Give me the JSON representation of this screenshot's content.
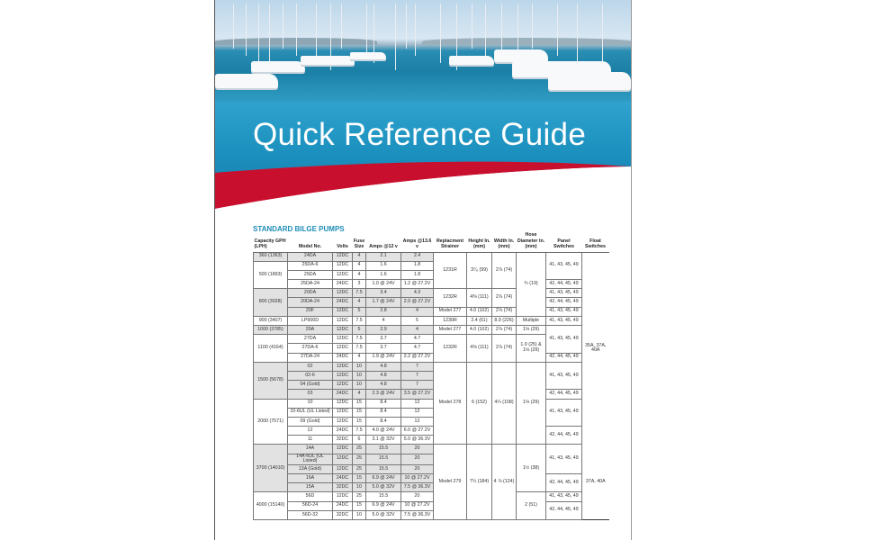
{
  "document": {
    "title": "Quick Reference Guide",
    "section": "STANDARD BILGE PUMPS",
    "colors": {
      "band": "#1b8fbd",
      "swoosh": "#c8102e",
      "section": "#1d8db5"
    }
  },
  "table": {
    "headers": [
      "Capacity GPH (LPH)",
      "Model No.",
      "Volts",
      "Fuse Size",
      "Amps @12 v",
      "Amps @13.6 v",
      "Replacment Strainer",
      "Height In. (mm)",
      "Width In. (mm)",
      "Hose Diameter In. (mm)",
      "Panel Switches",
      "Float Switches"
    ],
    "capacity": [
      {
        "text": "360 (1363)",
        "rows": 1
      },
      {
        "text": "500 (1893)",
        "rows": 3
      },
      {
        "text": "800 (3028)",
        "rows": 3
      },
      {
        "text": "900 (3407)",
        "rows": 1
      },
      {
        "text": "1000 (3785)",
        "rows": 1
      },
      {
        "text": "1100 (4164)",
        "rows": 3
      },
      {
        "text": "1500 (5678)",
        "rows": 4
      },
      {
        "text": "2000 (7571)",
        "rows": 5
      },
      {
        "text": "3700 (14010)",
        "rows": 5
      },
      {
        "text": "4000 (15140)",
        "rows": 3
      }
    ],
    "rows": [
      [
        "24DA",
        "12DC",
        "4",
        "2.1",
        "2.4"
      ],
      [
        "25DA-6",
        "12DC",
        "4",
        "1.6",
        "1.8"
      ],
      [
        "25DA",
        "12DC",
        "4",
        "1.6",
        "1.8"
      ],
      [
        "25DA-24",
        "24DC",
        "3",
        "1.0 @ 24V",
        "1.2 @ 27.2V"
      ],
      [
        "20DA",
        "12DC",
        "7.5",
        "3.4",
        "4.3"
      ],
      [
        "20DA-24",
        "24DC",
        "4",
        "1.7 @ 24V",
        "2.0 @ 27.2V"
      ],
      [
        "20F",
        "12DC",
        "5",
        "2.8",
        "4"
      ],
      [
        "LP900D",
        "12DC",
        "7.5",
        "4",
        "5"
      ],
      [
        "20A",
        "12DC",
        "5",
        "2.9",
        "4"
      ],
      [
        "27DA",
        "12DC",
        "7.5",
        "3.7",
        "4.7"
      ],
      [
        "27DA-6",
        "12DC",
        "7.5",
        "3.7",
        "4.7"
      ],
      [
        "27DA-24",
        "24DC",
        "4",
        "1.9 @ 24V",
        "2.2 @ 27.2V"
      ],
      [
        "02",
        "12DC",
        "10",
        "4.8",
        "7"
      ],
      [
        "02-6",
        "12DC",
        "10",
        "4.8",
        "7"
      ],
      [
        "04 (Gold)",
        "12DC",
        "10",
        "4.8",
        "7"
      ],
      [
        "03",
        "24DC",
        "4",
        "2.3 @ 24V",
        "3.5 @ 27.2V"
      ],
      [
        "10",
        "12DC",
        "15",
        "8.4",
        "12"
      ],
      [
        "10-6UL (UL Listed)",
        "12DC",
        "15",
        "8.4",
        "12"
      ],
      [
        "09 (Gold)",
        "12DC",
        "15",
        "8.4",
        "12"
      ],
      [
        "12",
        "24DC",
        "7.5",
        "4.0 @ 24V",
        "6.0 @ 27.2V"
      ],
      [
        "11",
        "32DC",
        "6",
        "3.1 @ 32V",
        "5.0 @ 36.3V"
      ],
      [
        "14A",
        "12DC",
        "25",
        "15.5",
        "20"
      ],
      [
        "14A-6UL (UL Listed)",
        "12DC",
        "25",
        "15.5",
        "20"
      ],
      [
        "13A (Gold)",
        "12DC",
        "25",
        "15.5",
        "20"
      ],
      [
        "16A",
        "24DC",
        "15",
        "6.9 @ 24V",
        "10 @ 27.2V"
      ],
      [
        "15A",
        "32DC",
        "10",
        "5.0 @ 32V",
        "7.5 @ 36.3V"
      ],
      [
        "56D",
        "12DC",
        "25",
        "15.5",
        "20"
      ],
      [
        "56D-24",
        "24DC",
        "15",
        "6.9 @ 24V",
        "10 @ 27.2V"
      ],
      [
        "56D-32",
        "32DC",
        "10",
        "5.0 @ 32V",
        "7.5 @ 36.3V"
      ]
    ],
    "strainer": [
      {
        "text": "1231R",
        "rows": 4
      },
      {
        "text": "1232R",
        "rows": 2
      },
      {
        "text": "Model 277",
        "rows": 1
      },
      {
        "text": "1230R",
        "rows": 1
      },
      {
        "text": "Model 277",
        "rows": 1
      },
      {
        "text": "1232R",
        "rows": 3
      },
      {
        "text": "Model 278",
        "rows": 9
      },
      {
        "text": "Model 279",
        "rows": 8
      }
    ],
    "height": [
      {
        "text": "3⁷⁄₈ (99)",
        "rows": 4
      },
      {
        "text": "4⅜ (111)",
        "rows": 2
      },
      {
        "text": "4.0 (102)",
        "rows": 1
      },
      {
        "text": "2.4 (61)",
        "rows": 1
      },
      {
        "text": "4.0 (102)",
        "rows": 1
      },
      {
        "text": "4⅜ (111)",
        "rows": 3
      },
      {
        "text": "6 (152)",
        "rows": 9
      },
      {
        "text": "7¼ (184)",
        "rows": 8
      }
    ],
    "width": [
      {
        "text": "2⅞ (74)",
        "rows": 4
      },
      {
        "text": "2⅞ (74)",
        "rows": 2
      },
      {
        "text": "2⅞ (74)",
        "rows": 1
      },
      {
        "text": "8.9 (226)",
        "rows": 1
      },
      {
        "text": "2⅞ (74)",
        "rows": 1
      },
      {
        "text": "2⅞ (74)",
        "rows": 3
      },
      {
        "text": "4¼ (108)",
        "rows": 9
      },
      {
        "text": "4 ⅞ (124)",
        "rows": 8
      }
    ],
    "hose": [
      {
        "text": "¾ (19)",
        "rows": 7
      },
      {
        "text": "Multiple",
        "rows": 1
      },
      {
        "text": "1⅛ (29)",
        "rows": 1
      },
      {
        "text": "1.0 (25) & 1⅛ (29)",
        "rows": 3
      },
      {
        "text": "1⅛ (29)",
        "rows": 9
      },
      {
        "text": "1½ (38)",
        "rows": 5
      },
      {
        "text": "2 (51)",
        "rows": 3
      }
    ],
    "panel": [
      {
        "text": "41, 43, 45, 49",
        "rows": 3
      },
      {
        "text": "42, 44, 45, 49",
        "rows": 1
      },
      {
        "text": "41, 43, 45, 49",
        "rows": 1
      },
      {
        "text": "42, 44, 45, 49",
        "rows": 1
      },
      {
        "text": "41, 43, 45, 49",
        "rows": 1
      },
      {
        "text": "41, 43, 45, 49",
        "rows": 1
      },
      {
        "text": "41, 43, 45, 49",
        "rows": 3
      },
      {
        "text": "42, 44, 45, 49",
        "rows": 1
      },
      {
        "text": "41, 43, 45, 49",
        "rows": 3
      },
      {
        "text": "42, 44, 45, 49",
        "rows": 1
      },
      {
        "text": "41, 43, 45, 49",
        "rows": 3
      },
      {
        "text": "42, 44, 45, 49",
        "rows": 2
      },
      {
        "text": "41, 43, 45, 49",
        "rows": 3
      },
      {
        "text": "42, 44, 45, 49",
        "rows": 2
      },
      {
        "text": "41, 43, 45, 49",
        "rows": 1
      },
      {
        "text": "42, 44, 45, 49",
        "rows": 2
      }
    ],
    "float": [
      {
        "text": "35A, 37A, 40A",
        "rows": 21
      },
      {
        "text": "37A, 40A",
        "rows": 8
      }
    ]
  }
}
